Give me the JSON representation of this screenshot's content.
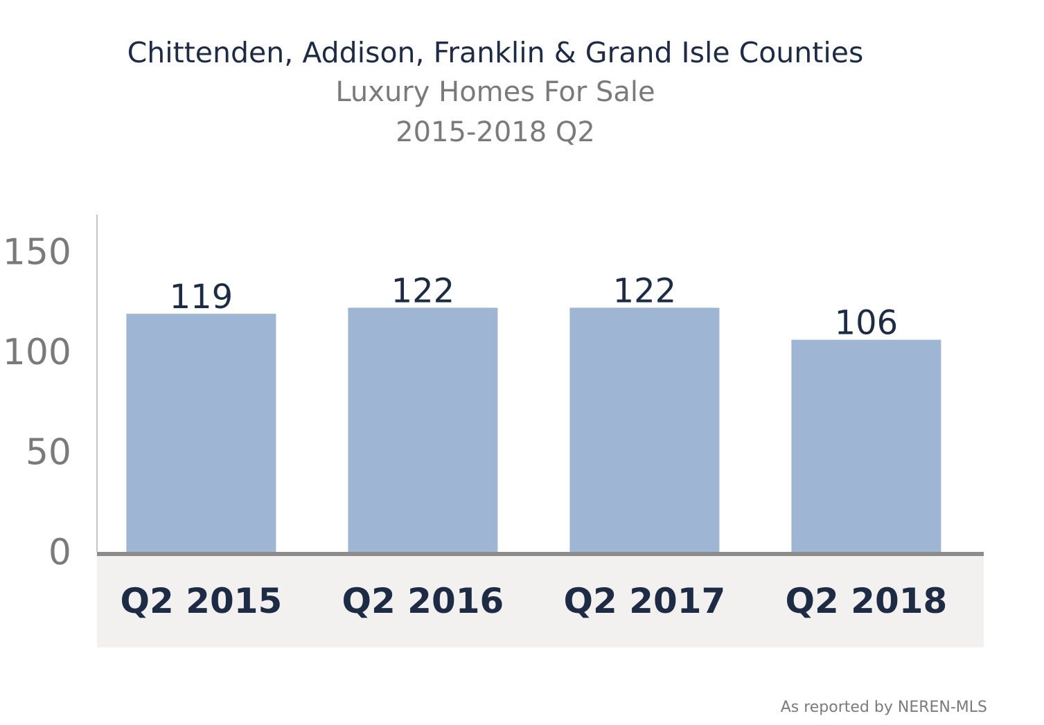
{
  "header": {
    "title": "Chittenden, Addison, Franklin & Grand Isle Counties",
    "subtitle": "Luxury Homes For Sale",
    "period": "2015-2018 Q2"
  },
  "footer": {
    "source": "As reported by NEREN-MLS"
  },
  "colors": {
    "bar": "#9eb5d4",
    "label": "#1e2b45",
    "axis_text": "#7a7a7a",
    "axis_band": "#f2f1f0",
    "baseline": "#8c8c8c"
  },
  "chart_data": {
    "type": "bar",
    "categories": [
      "Q2 2015",
      "Q2 2016",
      "Q2 2017",
      "Q2 2018"
    ],
    "values": [
      119,
      122,
      122,
      106
    ],
    "data_labels": [
      "119",
      "122",
      "122",
      "106"
    ],
    "yticks": [
      0,
      50,
      100,
      150
    ],
    "ylim": [
      0,
      160
    ],
    "grid": false,
    "legend": "none"
  }
}
